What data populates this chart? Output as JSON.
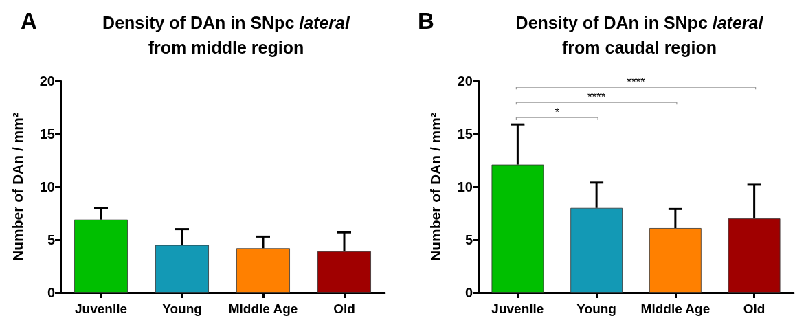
{
  "chart_data": [
    {
      "type": "bar",
      "title": "Density of DAn in SNpc lateral\nfrom middle region",
      "ylabel": "Number of DAn / mm²",
      "categories": [
        "Juvenile",
        "Young",
        "Middle Age",
        "Old"
      ],
      "values": [
        6.9,
        4.5,
        4.2,
        3.9
      ],
      "colors": [
        "#00bf00",
        "#1399b5",
        "#ff8000",
        "#a00000"
      ],
      "errors": [
        [
          6.9,
          8.0
        ],
        [
          4.5,
          6.0
        ],
        [
          4.2,
          5.3
        ],
        [
          3.9,
          5.7
        ]
      ],
      "ylim": [
        0,
        20
      ],
      "yticks": [
        0,
        5,
        10,
        15,
        20
      ],
      "grid": false,
      "annotations": [
        "A"
      ]
    },
    {
      "type": "bar",
      "title": "Density of DAn in SNpc lateral\nfrom caudal region",
      "ylabel": "Number of DAn / mm²",
      "categories": [
        "Juvenile",
        "Young",
        "Middle Age",
        "Old"
      ],
      "values": [
        12.1,
        8.0,
        6.1,
        7.0
      ],
      "colors": [
        "#00bf00",
        "#1399b5",
        "#ff8000",
        "#a00000"
      ],
      "errors": [
        [
          12.1,
          15.9
        ],
        [
          8.0,
          10.4
        ],
        [
          6.1,
          7.9
        ],
        [
          7.0,
          10.2
        ]
      ],
      "ylim": [
        0,
        20
      ],
      "yticks": [
        0,
        5,
        10,
        15,
        20
      ],
      "grid": false,
      "annotations": [
        "B",
        "*",
        "****",
        "****"
      ]
    }
  ]
}
